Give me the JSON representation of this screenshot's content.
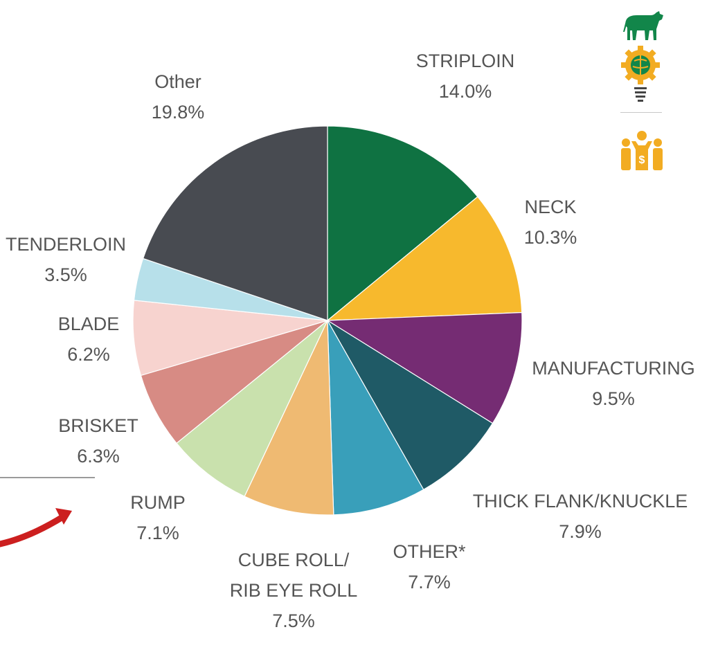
{
  "icons": [
    "cow-icon",
    "globe-gear-bulb-icon",
    "people-money-icon"
  ],
  "colors": {
    "label": "#555555",
    "icon_green": "#12864a",
    "icon_orange": "#f2ac22",
    "arrow": "#cc1f1f"
  },
  "chart_data": {
    "type": "pie",
    "start_angle_deg": 0,
    "direction": "clockwise",
    "slices": [
      {
        "label_lines": [
          "STRIPLOIN"
        ],
        "value_label": "14.0%",
        "value": 14.0,
        "color": "#0f7242"
      },
      {
        "label_lines": [
          "NECK"
        ],
        "value_label": "10.3%",
        "value": 10.3,
        "color": "#f7b92d"
      },
      {
        "label_lines": [
          "MANUFACTURING"
        ],
        "value_label": "9.5%",
        "value": 9.5,
        "color": "#752c73"
      },
      {
        "label_lines": [
          "THICK FLANK/KNUCKLE"
        ],
        "value_label": "7.9%",
        "value": 7.9,
        "color": "#1f5a66"
      },
      {
        "label_lines": [
          "OTHER*"
        ],
        "value_label": "7.7%",
        "value": 7.7,
        "color": "#399fba"
      },
      {
        "label_lines": [
          "CUBE ROLL/",
          "RIB EYE ROLL"
        ],
        "value_label": "7.5%",
        "value": 7.5,
        "color": "#efba72"
      },
      {
        "label_lines": [
          "RUMP"
        ],
        "value_label": "7.1%",
        "value": 7.1,
        "color": "#c9e1ad"
      },
      {
        "label_lines": [
          "BRISKET"
        ],
        "value_label": "6.3%",
        "value": 6.3,
        "color": "#d78b84"
      },
      {
        "label_lines": [
          "BLADE"
        ],
        "value_label": "6.2%",
        "value": 6.2,
        "color": "#f7d3cf"
      },
      {
        "label_lines": [
          "TENDERLOIN"
        ],
        "value_label": "3.5%",
        "value": 3.5,
        "color": "#b7e0ea"
      },
      {
        "label_lines": [
          "Other"
        ],
        "value_label": "19.8%",
        "value": 19.8,
        "color": "#484b51"
      }
    ]
  }
}
